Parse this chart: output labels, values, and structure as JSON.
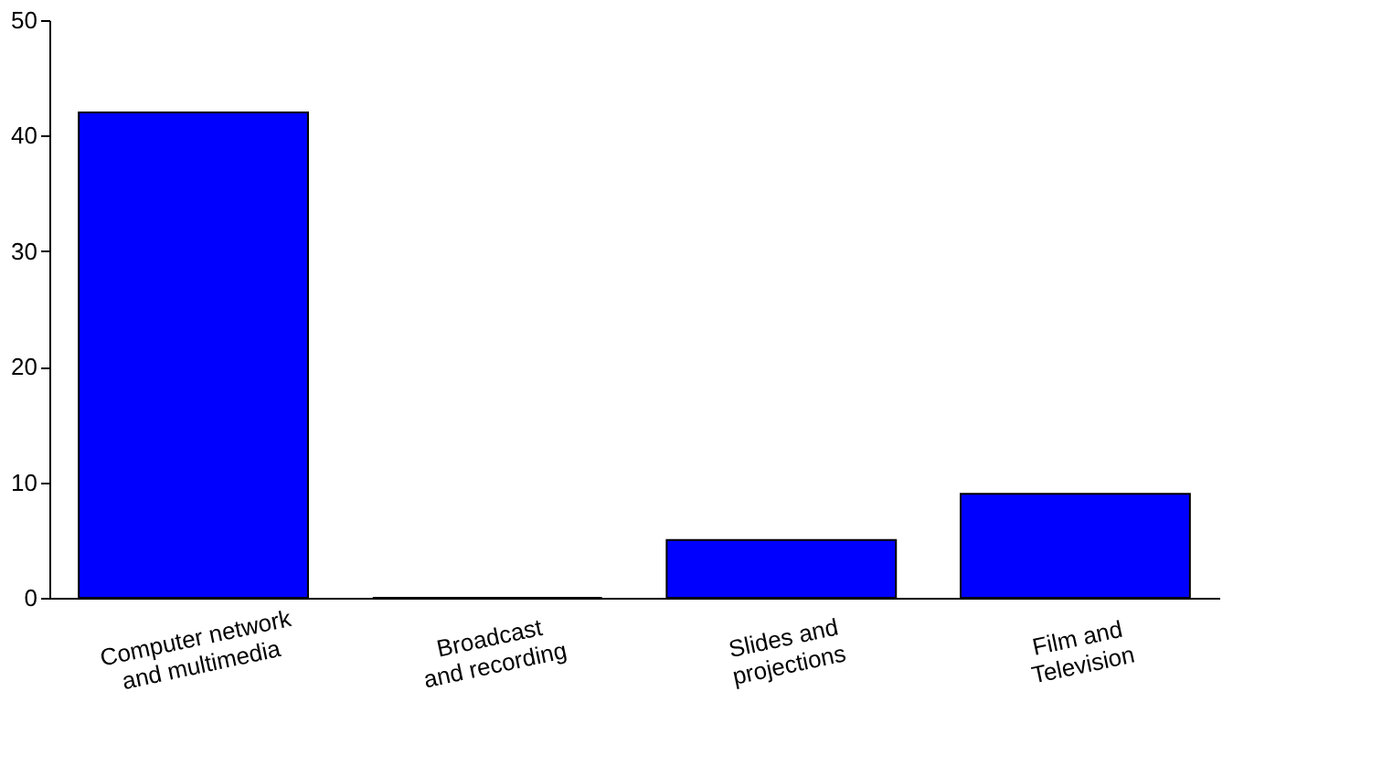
{
  "chart_data": {
    "type": "bar",
    "categories": [
      "Computer network and multimedia",
      "Broadcast and recording",
      "Slides and projections",
      "Film and Television"
    ],
    "values": [
      42,
      0,
      5,
      9
    ],
    "color": "#0000ff",
    "ylim": [
      0,
      50
    ],
    "yticks": [
      0,
      10,
      20,
      30,
      40,
      50
    ],
    "grid": false
  }
}
